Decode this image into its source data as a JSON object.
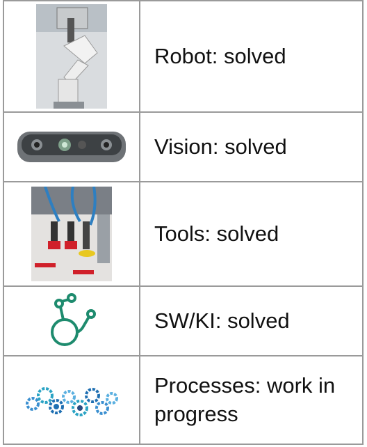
{
  "table": {
    "rows": [
      "Robot: solved",
      "Vision: solved",
      "Tools: solved",
      "SW/KI: solved",
      "Processes: work in progress"
    ]
  }
}
